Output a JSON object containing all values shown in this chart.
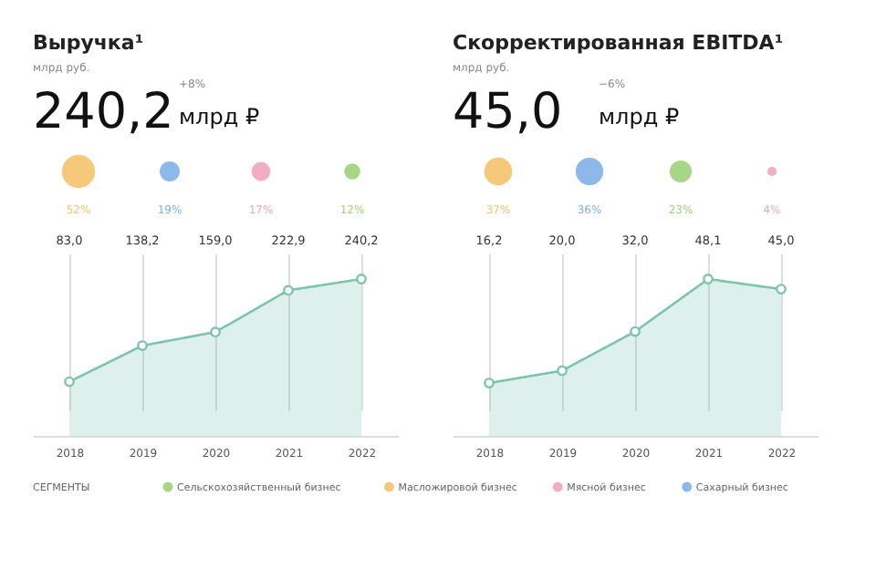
{
  "chart_data": [
    {
      "type": "other",
      "title": "Выручка¹",
      "subtitle": "млрд руб.",
      "annotations": [
        "240,2",
        "+8%",
        "млрд ₽"
      ]
    },
    {
      "type": "other",
      "categories": [
        null,
        null,
        null,
        null
      ],
      "values": [
        52,
        19,
        17,
        12
      ],
      "colors": [
        "#f5c26b",
        "#7fb0e8",
        "#f0a5bd",
        "#9fd27a"
      ],
      "value_labels": [
        "52%",
        "19%",
        "17%",
        "12%"
      ]
    },
    {
      "type": "area",
      "categories": [
        "2018",
        "2019",
        "2020",
        "2021",
        "2022"
      ],
      "series": [
        {
          "color": "#7cc4ae",
          "values": [
            83.0,
            138.2,
            159.0,
            222.9,
            240.2
          ],
          "value_labels": [
            "83,0",
            "138,2",
            "159,0",
            "222,9",
            "240,2"
          ]
        }
      ],
      "marker": "circle",
      "grid": "x",
      "tick_labels": "x"
    },
    {
      "type": "other",
      "title": "Скорректированная EBITDA¹",
      "subtitle": "млрд руб.",
      "annotations": [
        "45,0",
        "−6%",
        "млрд ₽"
      ]
    },
    {
      "type": "other",
      "categories": [
        null,
        null,
        null,
        null
      ],
      "values": [
        37,
        36,
        23,
        4
      ],
      "colors": [
        "#f5c26b",
        "#7fb0e8",
        "#9fd27a",
        "#f0a5bd"
      ],
      "value_labels": [
        "37%",
        "36%",
        "23%",
        "4%"
      ]
    },
    {
      "type": "area",
      "categories": [
        "2018",
        "2019",
        "2020",
        "2021",
        "2022"
      ],
      "series": [
        {
          "color": "#7cc4ae",
          "values": [
            16.2,
            20.0,
            32.0,
            48.1,
            45.0
          ],
          "value_labels": [
            "16,2",
            "20,0",
            "32,0",
            "48,1",
            "45,0"
          ]
        }
      ],
      "marker": "circle",
      "grid": "x",
      "tick_labels": "x"
    },
    {
      "type": "other",
      "legend_title": "СЕГМЕНТЫ",
      "categories": [
        "Сельскохозяйственный бизнес",
        "Масложировой бизнес",
        "Мясной бизнес",
        "Сахарный бизнес"
      ],
      "colors": [
        "#9fd27a",
        "#f5c26b",
        "#f0a5bd",
        "#7fb0e8"
      ]
    }
  ]
}
